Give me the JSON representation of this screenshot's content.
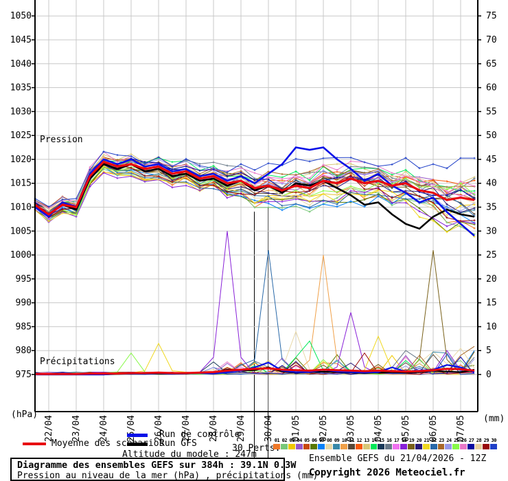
{
  "labels": {
    "pressure_section": "Pression",
    "precip_section": "Précipitations",
    "left_unit": "(hPa)",
    "right_unit": "(mm)"
  },
  "legend": {
    "mean_label": "Moyenne des scénarios",
    "mean_color": "#e80810",
    "control_label": "Run de contrôle",
    "control_color": "#0810e8",
    "gfs_label": "Run GFS",
    "gfs_color": "#000000",
    "perts_label": "30 Perts.",
    "altitude": "Altitude du modele : 247m"
  },
  "footer": {
    "title": "Diagramme des ensembles GEFS sur 384h : 39.1N 0.3W",
    "subtitle": "Pression au niveau de la mer (hPa) , précipitations (mm)",
    "run_info": "Ensemble GEFS du 21/04/2026 - 12Z",
    "copyright": "Copyright 2026 Meteociel.fr"
  },
  "chart_data": {
    "type": "line",
    "title": "Diagramme des ensembles GEFS sur 384h : 39.1N 0.3W",
    "x_start": "21/04 12Z",
    "x_step_hours": 12,
    "x_total_hours": 384,
    "x_tick_labels": [
      "22/04",
      "23/04",
      "24/04",
      "25/04",
      "26/04",
      "27/04",
      "28/04",
      "29/04",
      "30/04",
      "01/05",
      "02/05",
      "03/05",
      "04/05",
      "05/05",
      "06/05",
      "07/05"
    ],
    "y_left": {
      "unit": "hPa",
      "min": 975,
      "max": 1050,
      "step": 5
    },
    "y_right": {
      "unit": "mm",
      "min": 0,
      "max": 75,
      "step": 5
    },
    "grid": true,
    "series": {
      "mean_pressure": [
        1010.5,
        1008.5,
        1010.5,
        1010,
        1016.5,
        1019.5,
        1018.5,
        1019,
        1018,
        1018.5,
        1017,
        1017.5,
        1016,
        1016.5,
        1015,
        1015.5,
        1014,
        1014.5,
        1013.5,
        1014.5,
        1014,
        1015.5,
        1015,
        1016,
        1015,
        1015.5,
        1014.5,
        1015,
        1013.5,
        1013,
        1011.5,
        1012,
        1011.5
      ],
      "control_pressure": [
        1010,
        1008,
        1011,
        1010,
        1017,
        1020,
        1019,
        1020,
        1018.5,
        1019,
        1017.5,
        1018,
        1016.5,
        1017,
        1015.5,
        1016.5,
        1015,
        1017,
        1019,
        1022.5,
        1022,
        1022.5,
        1020,
        1018,
        1015.5,
        1017,
        1014.5,
        1013,
        1011,
        1012,
        1009,
        1006.5,
        1004
      ],
      "gfs_pressure": [
        1010,
        1008.5,
        1010.5,
        1009.5,
        1016,
        1019,
        1018,
        1019,
        1017.5,
        1018,
        1016.5,
        1017,
        1015.5,
        1016,
        1014.5,
        1015.5,
        1013.5,
        1014.5,
        1013,
        1015,
        1014.5,
        1015.5,
        1014,
        1012.5,
        1010.5,
        1011,
        1008.5,
        1006.5,
        1005.5,
        1008,
        1009.5,
        1008.5,
        1008
      ],
      "mean_precip": [
        0.1,
        0.1,
        0.1,
        0.1,
        0.2,
        0.2,
        0.2,
        0.3,
        0.3,
        0.4,
        0.3,
        0.3,
        0.4,
        0.5,
        0.8,
        1,
        1.2,
        1.3,
        1,
        0.9,
        0.8,
        1,
        0.9,
        0.8,
        0.7,
        0.8,
        0.7,
        0.6,
        0.7,
        0.9,
        1.2,
        1.1,
        0.8
      ],
      "control_precip": [
        0,
        0,
        0,
        0,
        0,
        0,
        0.2,
        0.2,
        0.2,
        0.3,
        0.2,
        0.2,
        0.3,
        0.3,
        0.5,
        0.8,
        1.5,
        2.5,
        0.8,
        0.5,
        0.5,
        1,
        0.6,
        0.5,
        0.4,
        0.5,
        1.5,
        0.6,
        0.8,
        1,
        2,
        1.5,
        0.5
      ],
      "gfs_precip": [
        0,
        0,
        0,
        0,
        0,
        0,
        0.1,
        0.2,
        0.2,
        0.2,
        0.2,
        0.2,
        0.3,
        0.4,
        1,
        0.8,
        0.9,
        1.5,
        0.6,
        0.4,
        0.5,
        0.6,
        0.5,
        0.4,
        0.3,
        0.4,
        0.5,
        0.4,
        0.5,
        0.8,
        0.6,
        0.5,
        1
      ]
    },
    "ensemble_spread_hpa": [
      1.2,
      1.5,
      1.6,
      1.8,
      2,
      2.1,
      2.2,
      2.3,
      2.4,
      2.5,
      2.6,
      2.7,
      2.9,
      3,
      3.4,
      3.8,
      4.5,
      5,
      5.3,
      5.5,
      5.5,
      5.2,
      5,
      5,
      5.3,
      5.5,
      5.8,
      6,
      6.5,
      7,
      7.5,
      8,
      8.5
    ],
    "precip_events": [
      {
        "pert": 18,
        "idx": 14,
        "mm": 30
      },
      {
        "pert": 22,
        "idx": 17,
        "mm": 26
      },
      {
        "pert": 10,
        "idx": 21,
        "mm": 25
      },
      {
        "pert": 18,
        "idx": 23,
        "mm": 13
      },
      {
        "pert": 19,
        "idx": 29,
        "mm": 26
      },
      {
        "pert": 21,
        "idx": 9,
        "mm": 6.5
      },
      {
        "pert": 25,
        "idx": 7,
        "mm": 4.5
      },
      {
        "pert": 8,
        "idx": 19,
        "mm": 9
      },
      {
        "pert": 14,
        "idx": 20,
        "mm": 7
      },
      {
        "pert": 21,
        "idx": 25,
        "mm": 8
      },
      {
        "pert": 23,
        "idx": 28,
        "mm": 4
      },
      {
        "pert": 9,
        "idx": 30,
        "mm": 4.5
      },
      {
        "pert": 23,
        "idx": 31,
        "mm": 4
      },
      {
        "pert": 7,
        "idx": 32,
        "mm": 5
      }
    ],
    "perturbations": [
      {
        "id": "01",
        "color": "#F07828"
      },
      {
        "id": "02",
        "color": "#78C878"
      },
      {
        "id": "03",
        "color": "#F0C800"
      },
      {
        "id": "04",
        "color": "#9858C8"
      },
      {
        "id": "05",
        "color": "#C84810"
      },
      {
        "id": "06",
        "color": "#587800"
      },
      {
        "id": "07",
        "color": "#0880F8"
      },
      {
        "id": "08",
        "color": "#E8D8A8"
      },
      {
        "id": "09",
        "color": "#3888A8"
      },
      {
        "id": "10",
        "color": "#F0A048"
      },
      {
        "id": "11",
        "color": "#584838"
      },
      {
        "id": "12",
        "color": "#F85808"
      },
      {
        "id": "13",
        "color": "#D8C878"
      },
      {
        "id": "14",
        "color": "#00E858"
      },
      {
        "id": "15",
        "color": "#183858"
      },
      {
        "id": "16",
        "color": "#687888"
      },
      {
        "id": "17",
        "color": "#F070F0"
      },
      {
        "id": "18",
        "color": "#8820D8"
      },
      {
        "id": "19",
        "color": "#786018"
      },
      {
        "id": "20",
        "color": "#281878"
      },
      {
        "id": "21",
        "color": "#F0D820"
      },
      {
        "id": "22",
        "color": "#2868A8"
      },
      {
        "id": "23",
        "color": "#A86828"
      },
      {
        "id": "24",
        "color": "#9898E8"
      },
      {
        "id": "25",
        "color": "#88F848"
      },
      {
        "id": "26",
        "color": "#E878C8"
      },
      {
        "id": "27",
        "color": "#0808A0"
      },
      {
        "id": "28",
        "color": "#E8D0A0"
      },
      {
        "id": "29",
        "color": "#980808"
      },
      {
        "id": "30",
        "color": "#2040C8"
      }
    ],
    "overlay": {
      "cursor_line_x": [
        370,
        390
      ],
      "cursor_line_top_y": [
        308,
        302
      ]
    }
  }
}
